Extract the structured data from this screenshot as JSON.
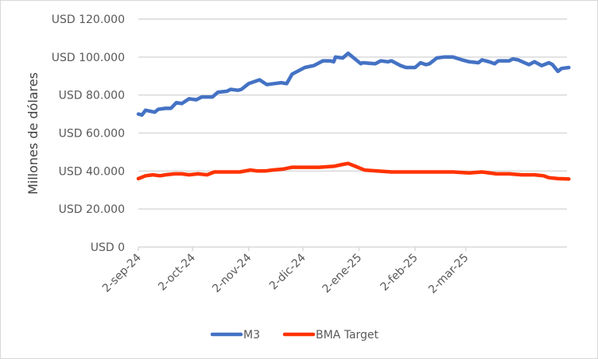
{
  "chart_data": {
    "type": "line",
    "title": "",
    "xlabel": "",
    "ylabel": "Millones de dólares",
    "ylim": [
      0,
      120000
    ],
    "y_ticks": [
      0,
      20000,
      40000,
      60000,
      80000,
      100000,
      120000
    ],
    "y_tick_labels": [
      "USD 0",
      "USD 20.000",
      "USD 40.000",
      "USD 60.000",
      "USD 80.000",
      "USD 100.000",
      "USD 120.000"
    ],
    "x_unit": "days since 2-sep-24",
    "xlim": [
      0,
      237
    ],
    "x_ticks": [
      0,
      30,
      61,
      91,
      122,
      153,
      181
    ],
    "x_tick_labels": [
      "2-sep-24",
      "2-oct-24",
      "2-nov-24",
      "2-dic-24",
      "2-ene-25",
      "2-feb-25",
      "2-mar-25"
    ],
    "grid": true,
    "legend_position": "bottom",
    "series": [
      {
        "name": "M3",
        "color": "#4472c4",
        "x": [
          0,
          2,
          4,
          9,
          11,
          15,
          18,
          21,
          24,
          28,
          32,
          35,
          41,
          44,
          49,
          51,
          55,
          57,
          61,
          67,
          71,
          75,
          79,
          82,
          85,
          92,
          97,
          102,
          106,
          108,
          109,
          113,
          116,
          123,
          124,
          131,
          134,
          138,
          140,
          145,
          148,
          153,
          156,
          159,
          161,
          165,
          169,
          174,
          179,
          183,
          188,
          190,
          194,
          197,
          199,
          205,
          207,
          210,
          216,
          219,
          223,
          227,
          229,
          232,
          234,
          238
        ],
        "values": [
          70000,
          69500,
          72000,
          71000,
          72500,
          73000,
          73000,
          76000,
          75500,
          78000,
          77500,
          79000,
          79000,
          81500,
          82000,
          83000,
          82500,
          83000,
          86000,
          88000,
          85500,
          86000,
          86500,
          86000,
          91000,
          94500,
          95500,
          98000,
          98000,
          97500,
          100000,
          99500,
          102000,
          96500,
          97000,
          96500,
          98000,
          97500,
          98000,
          95500,
          94500,
          94500,
          97000,
          96000,
          96500,
          99500,
          100000,
          100000,
          98500,
          97500,
          97000,
          98500,
          97500,
          96500,
          98000,
          98000,
          99000,
          98500,
          96000,
          97500,
          95500,
          97000,
          96000,
          92500,
          94000,
          94500
        ]
      },
      {
        "name": "BMA Target",
        "color": "#ff3300",
        "x": [
          0,
          4,
          8,
          12,
          15,
          20,
          24,
          28,
          33,
          38,
          42,
          47,
          51,
          56,
          62,
          66,
          70,
          74,
          80,
          85,
          91,
          100,
          108,
          113,
          116,
          120,
          125,
          132,
          140,
          148,
          156,
          165,
          174,
          183,
          190,
          198,
          205,
          212,
          219,
          224,
          227,
          232,
          238
        ],
        "values": [
          36000,
          37500,
          38000,
          37500,
          38000,
          38500,
          38500,
          38000,
          38500,
          38000,
          39500,
          39500,
          39500,
          39500,
          40500,
          40000,
          40000,
          40500,
          41000,
          42000,
          42000,
          42000,
          42500,
          43500,
          44000,
          42500,
          40500,
          40000,
          39500,
          39500,
          39500,
          39500,
          39500,
          39000,
          39500,
          38500,
          38500,
          38000,
          38000,
          37500,
          36500,
          36000,
          35800
        ]
      }
    ]
  }
}
